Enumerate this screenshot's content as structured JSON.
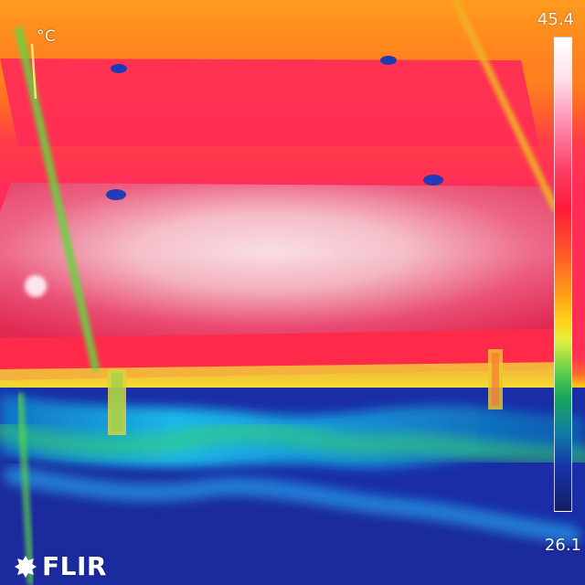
{
  "overlay": {
    "unit": "°C",
    "max_temperature": "45.4",
    "min_temperature": "26.1",
    "brand": "FLIR"
  },
  "colors": {
    "background": "#000000",
    "hot": "#ff214f",
    "warm": "#ff9a1f",
    "cool": "#19b6ee",
    "cold": "#1527a7"
  }
}
